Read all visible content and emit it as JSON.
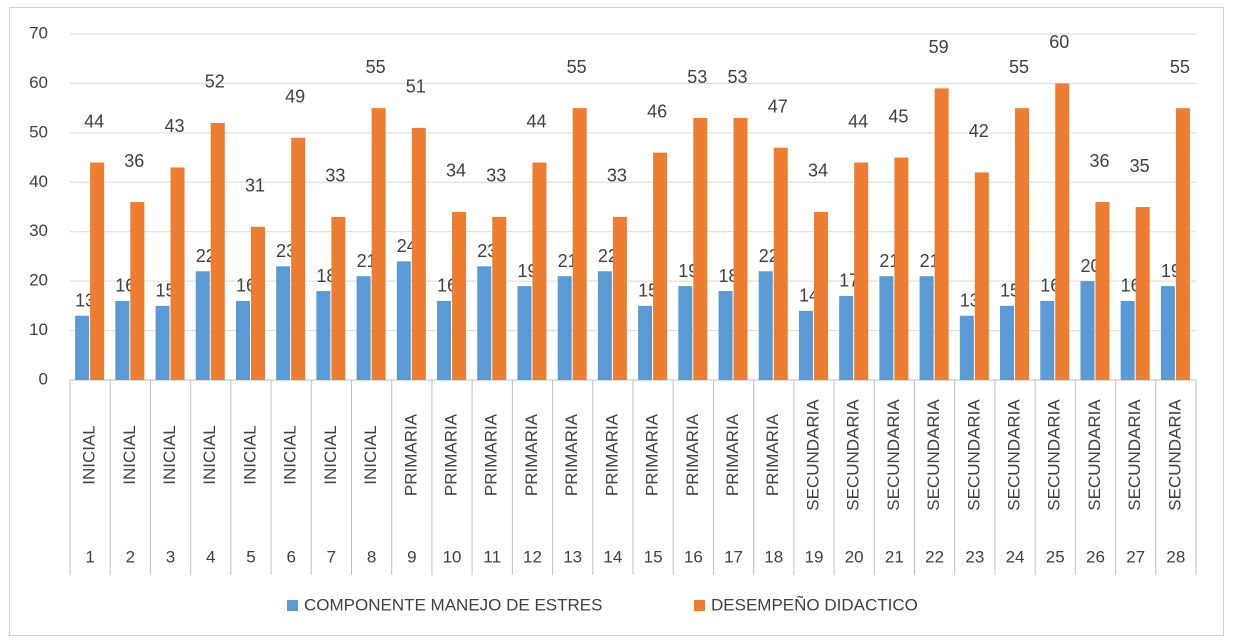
{
  "chart_data": {
    "type": "bar",
    "categories": [
      "1",
      "2",
      "3",
      "4",
      "5",
      "6",
      "7",
      "8",
      "9",
      "10",
      "11",
      "12",
      "13",
      "14",
      "15",
      "16",
      "17",
      "18",
      "19",
      "20",
      "21",
      "22",
      "23",
      "24",
      "25",
      "26",
      "27",
      "28"
    ],
    "levels": [
      "INICIAL",
      "INICIAL",
      "INICIAL",
      "INICIAL",
      "INICIAL",
      "INICIAL",
      "INICIAL",
      "INICIAL",
      "PRIMARIA",
      "PRIMARIA",
      "PRIMARIA",
      "PRIMARIA",
      "PRIMARIA",
      "PRIMARIA",
      "PRIMARIA",
      "PRIMARIA",
      "PRIMARIA",
      "PRIMARIA",
      "SECUNDARIA",
      "SECUNDARIA",
      "SECUNDARIA",
      "SECUNDARIA",
      "SECUNDARIA",
      "SECUNDARIA",
      "SECUNDARIA",
      "SECUNDARIA",
      "SECUNDARIA",
      "SECUNDARIA"
    ],
    "series": [
      {
        "name": "COMPONENTE MANEJO DE ESTRES",
        "color": "#5b9bd5",
        "values": [
          13,
          16,
          15,
          22,
          16,
          23,
          18,
          21,
          24,
          16,
          23,
          19,
          21,
          22,
          15,
          19,
          18,
          22,
          14,
          17,
          21,
          21,
          13,
          15,
          16,
          20,
          16,
          19
        ]
      },
      {
        "name": "DESEMPEÑO DIDACTICO",
        "color": "#ed7d31",
        "values": [
          44,
          36,
          43,
          52,
          31,
          49,
          33,
          55,
          51,
          34,
          33,
          44,
          55,
          33,
          46,
          53,
          53,
          47,
          34,
          44,
          45,
          59,
          42,
          55,
          60,
          36,
          35,
          55
        ]
      }
    ],
    "ylim": [
      0,
      70
    ],
    "yticks": [
      0,
      10,
      20,
      30,
      40,
      50,
      60,
      70
    ],
    "grid": true,
    "legend": "bottom"
  }
}
